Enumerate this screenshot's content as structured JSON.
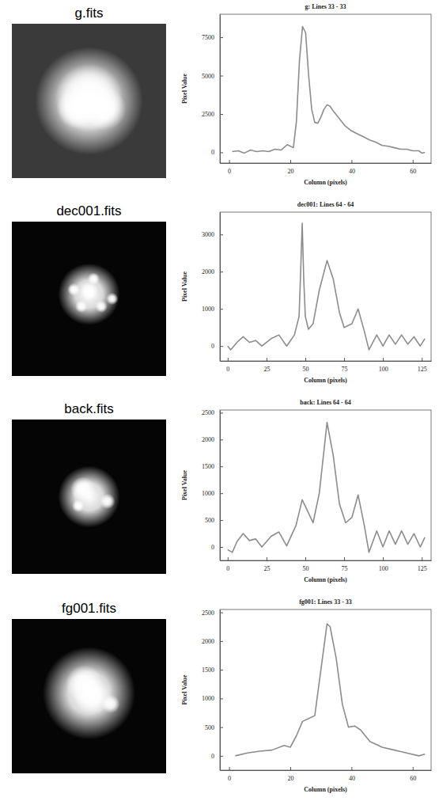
{
  "images": [
    {
      "title": "g.fits"
    },
    {
      "title": "dec001.fits"
    },
    {
      "title": "back.fits"
    },
    {
      "title": "fg001.fits"
    }
  ],
  "chart_data": [
    {
      "type": "line",
      "title": "g: Lines 33 - 33",
      "xlabel": "Column (pixels)",
      "ylabel": "Pixel Value",
      "color": "#8c8c8c",
      "x": [
        1,
        3,
        5,
        7,
        9,
        11,
        13,
        15,
        17,
        19,
        21,
        22,
        23,
        24,
        25,
        26,
        27,
        28,
        29,
        30,
        31,
        32,
        33,
        34,
        36,
        38,
        40,
        42,
        44,
        46,
        48,
        50,
        52,
        54,
        56,
        58,
        60,
        62,
        63,
        64
      ],
      "values": [
        50,
        100,
        -50,
        150,
        50,
        100,
        50,
        200,
        150,
        500,
        300,
        2000,
        6000,
        8200,
        7800,
        5000,
        2800,
        1950,
        1900,
        2300,
        2800,
        3100,
        3000,
        2700,
        2200,
        1700,
        1400,
        1200,
        1000,
        800,
        650,
        450,
        400,
        300,
        200,
        200,
        100,
        100,
        -50,
        0
      ],
      "xlim": [
        -3,
        66
      ],
      "ylim": [
        -700,
        9000
      ],
      "xticks": [
        0,
        20,
        40,
        60
      ],
      "yticks": [
        0,
        2500,
        5000,
        7500
      ]
    },
    {
      "type": "line",
      "title": "dec001: Lines 64 - 64",
      "xlabel": "Column (pixels)",
      "ylabel": "Pixel Value",
      "color": "#8c8c8c",
      "x": [
        0,
        2,
        6,
        10,
        14,
        18,
        22,
        28,
        33,
        38,
        43,
        46,
        47,
        48,
        49,
        50,
        52,
        55,
        59,
        64,
        68,
        72,
        75,
        80,
        84,
        88,
        91,
        96,
        100,
        104,
        108,
        112,
        116,
        120,
        124,
        127
      ],
      "values": [
        0,
        -100,
        100,
        250,
        100,
        150,
        0,
        200,
        300,
        0,
        300,
        800,
        2000,
        3300,
        1800,
        800,
        450,
        600,
        1500,
        2300,
        1800,
        900,
        500,
        600,
        1000,
        400,
        -100,
        300,
        0,
        300,
        50,
        300,
        50,
        250,
        0,
        200
      ],
      "xlim": [
        -5,
        131
      ],
      "ylim": [
        -400,
        3600
      ],
      "xticks": [
        0,
        25,
        50,
        75,
        100,
        125
      ],
      "yticks": [
        0,
        1000,
        2000,
        3000
      ]
    },
    {
      "type": "line",
      "title": "back: Lines 64 - 64",
      "xlabel": "Column (pixels)",
      "ylabel": "Pixel Value",
      "color": "#8c8c8c",
      "x": [
        0,
        3,
        6,
        10,
        14,
        18,
        22,
        28,
        33,
        38,
        44,
        48,
        51,
        55,
        59,
        64,
        68,
        72,
        76,
        80,
        84,
        88,
        91,
        96,
        100,
        104,
        108,
        112,
        116,
        120,
        124,
        127
      ],
      "values": [
        -50,
        -100,
        100,
        250,
        120,
        150,
        0,
        200,
        280,
        20,
        400,
        880,
        700,
        450,
        1000,
        2320,
        1700,
        800,
        450,
        550,
        970,
        400,
        -100,
        300,
        0,
        300,
        50,
        300,
        50,
        250,
        0,
        180
      ],
      "xlim": [
        -5,
        131
      ],
      "ylim": [
        -250,
        2550
      ],
      "xticks": [
        0,
        25,
        50,
        75,
        100,
        125
      ],
      "yticks": [
        0,
        500,
        1000,
        1500,
        2000,
        2500
      ]
    },
    {
      "type": "line",
      "title": "fg001: Lines 33 - 33",
      "xlabel": "Column (pixels)",
      "ylabel": "Pixel Value",
      "color": "#8c8c8c",
      "x": [
        2,
        6,
        10,
        14,
        18,
        20,
        22,
        24,
        26,
        28,
        30,
        32,
        33,
        35,
        37,
        39,
        41,
        43,
        46,
        50,
        54,
        58,
        62,
        64
      ],
      "values": [
        0,
        50,
        80,
        100,
        180,
        150,
        350,
        600,
        650,
        700,
        1500,
        2300,
        2250,
        1700,
        900,
        500,
        520,
        450,
        250,
        150,
        100,
        50,
        0,
        30
      ],
      "xlim": [
        -3,
        66
      ],
      "ylim": [
        -250,
        2550
      ],
      "xticks": [
        0,
        20,
        40,
        60
      ],
      "yticks": [
        0,
        500,
        1000,
        1500,
        2000,
        2500
      ]
    }
  ]
}
